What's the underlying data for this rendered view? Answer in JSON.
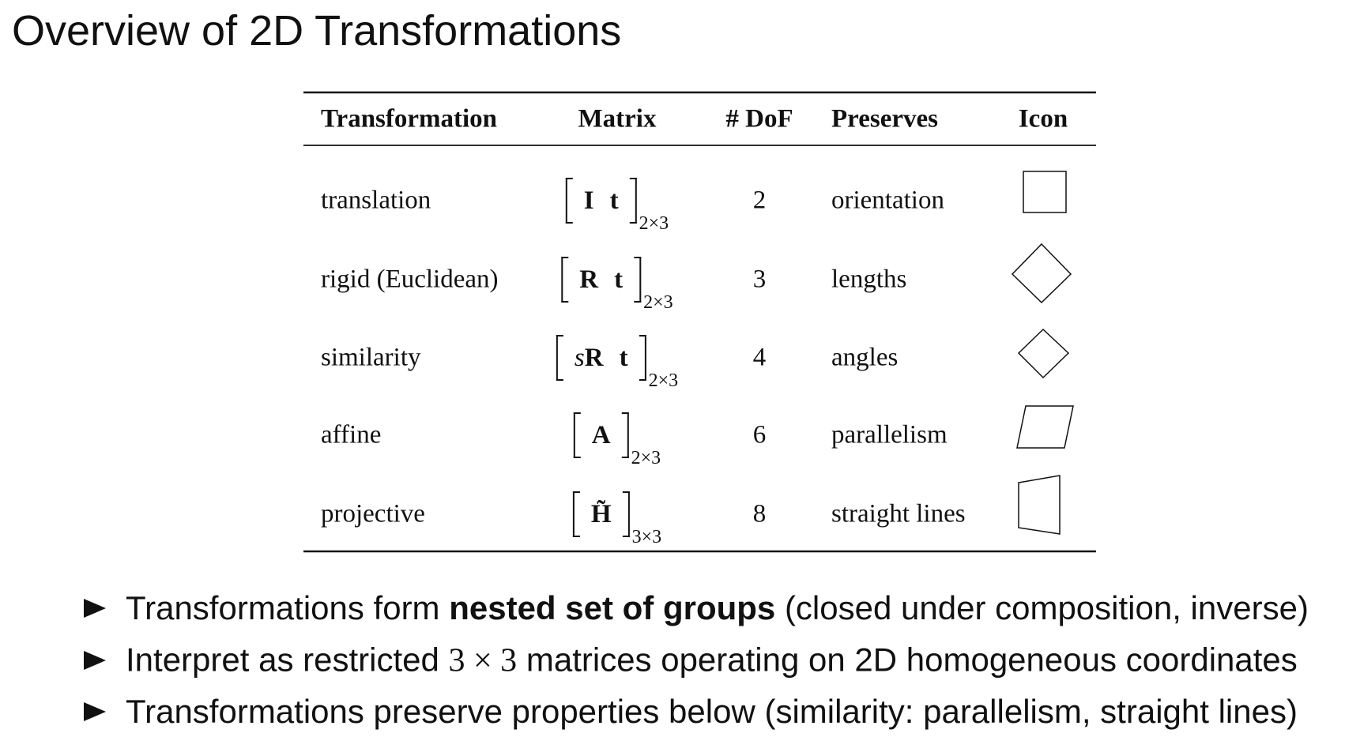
{
  "title": "Overview of 2D Transformations",
  "table": {
    "headers": [
      "Transformation",
      "Matrix",
      "# DoF",
      "Preserves",
      "Icon"
    ],
    "rows": [
      {
        "name": "translation",
        "matrix": {
          "entries": [
            [
              {
                "text": "I",
                "style": "bold"
              }
            ],
            [
              {
                "text": "t",
                "style": "bold"
              }
            ]
          ],
          "size": "2×3"
        },
        "dof": "2",
        "preserves": "orientation"
      },
      {
        "name": "rigid (Euclidean)",
        "matrix": {
          "entries": [
            [
              {
                "text": "R",
                "style": "bold"
              }
            ],
            [
              {
                "text": "t",
                "style": "bold"
              }
            ]
          ],
          "size": "2×3"
        },
        "dof": "3",
        "preserves": "lengths"
      },
      {
        "name": "similarity",
        "matrix": {
          "entries": [
            [
              {
                "text": "s",
                "style": "italic"
              },
              {
                "text": "R",
                "style": "bold"
              }
            ],
            [
              {
                "text": "t",
                "style": "bold"
              }
            ]
          ],
          "size": "2×3"
        },
        "dof": "4",
        "preserves": "angles"
      },
      {
        "name": "affine",
        "matrix": {
          "entries": [
            [
              {
                "text": "A",
                "style": "bold"
              }
            ]
          ],
          "size": "2×3"
        },
        "dof": "6",
        "preserves": "parallelism"
      },
      {
        "name": "projective",
        "matrix": {
          "entries": [
            [
              {
                "text": "H̃",
                "style": "bold"
              }
            ]
          ],
          "size": "3×3"
        },
        "dof": "8",
        "preserves": "straight lines"
      }
    ]
  },
  "bullets": [
    [
      {
        "text": "Transformations form "
      },
      {
        "text": "nested set of groups",
        "style": "bold"
      },
      {
        "text": " (closed under composition, inverse)"
      }
    ],
    [
      {
        "text": "Interpret as restricted "
      },
      {
        "text": "3 × 3",
        "style": "math"
      },
      {
        "text": " matrices operating on 2D homogeneous coordinates"
      }
    ],
    [
      {
        "text": "Transformations preserve properties below (similarity: parallelism, straight lines)"
      }
    ]
  ]
}
